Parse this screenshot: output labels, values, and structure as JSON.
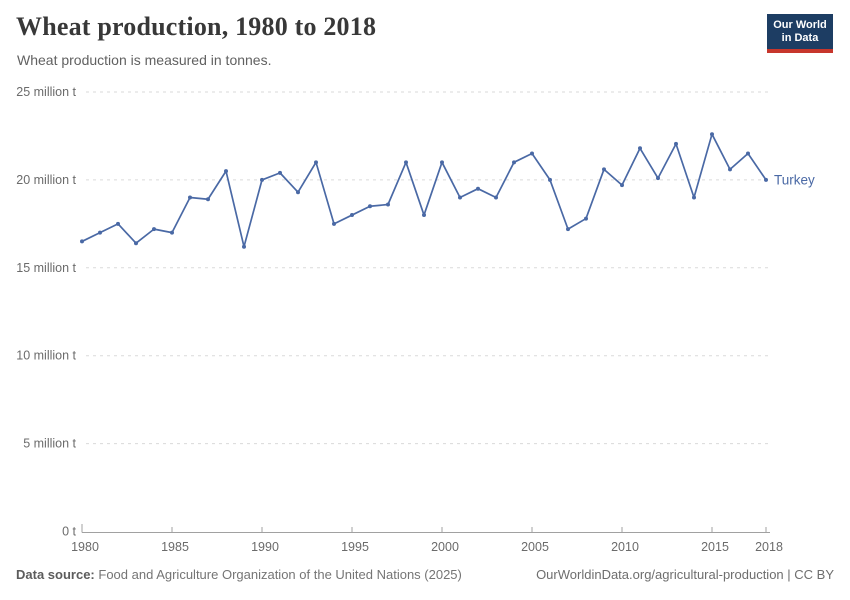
{
  "header": {
    "title": "Wheat production, 1980 to 2018",
    "subtitle": "Wheat production is measured in tonnes."
  },
  "logo": {
    "line1": "Our World",
    "line2": "in Data"
  },
  "chart_data": {
    "type": "line",
    "title": "Wheat production, 1980 to 2018",
    "unit": "million tonnes",
    "xlim": [
      1980,
      2018
    ],
    "ylim": [
      0,
      25
    ],
    "grid": "horizontal-dashed",
    "legend": "series-end-label",
    "x_ticks": [
      1980,
      1985,
      1990,
      1995,
      2000,
      2005,
      2010,
      2015,
      2018
    ],
    "y_ticks": [
      0,
      5,
      10,
      15,
      20,
      25
    ],
    "y_tick_labels": [
      "0 t",
      "5 million t",
      "10 million t",
      "15 million t",
      "20 million t",
      "25 million t"
    ],
    "series": [
      {
        "name": "Turkey",
        "color": "#4a69a5",
        "x": [
          1980,
          1981,
          1982,
          1983,
          1984,
          1985,
          1986,
          1987,
          1988,
          1989,
          1990,
          1991,
          1992,
          1993,
          1994,
          1995,
          1996,
          1997,
          1998,
          1999,
          2000,
          2001,
          2002,
          2003,
          2004,
          2005,
          2006,
          2007,
          2008,
          2009,
          2010,
          2011,
          2012,
          2013,
          2014,
          2015,
          2016,
          2017,
          2018
        ],
        "values": [
          16.5,
          17.0,
          17.5,
          16.4,
          17.2,
          17.0,
          19.0,
          18.9,
          20.5,
          16.2,
          20.0,
          20.4,
          19.3,
          21.0,
          17.5,
          18.0,
          18.5,
          18.6,
          21.0,
          18.0,
          21.0,
          19.0,
          19.5,
          19.0,
          21.0,
          21.5,
          20.0,
          17.2,
          17.8,
          20.6,
          19.7,
          21.8,
          20.1,
          22.05,
          19.0,
          22.6,
          20.6,
          21.5,
          20.0
        ]
      }
    ]
  },
  "footer": {
    "source_label": "Data source:",
    "source_text": "Food and Agriculture Organization of the United Nations (2025)",
    "credit": "OurWorldinData.org/agricultural-production | CC BY"
  }
}
